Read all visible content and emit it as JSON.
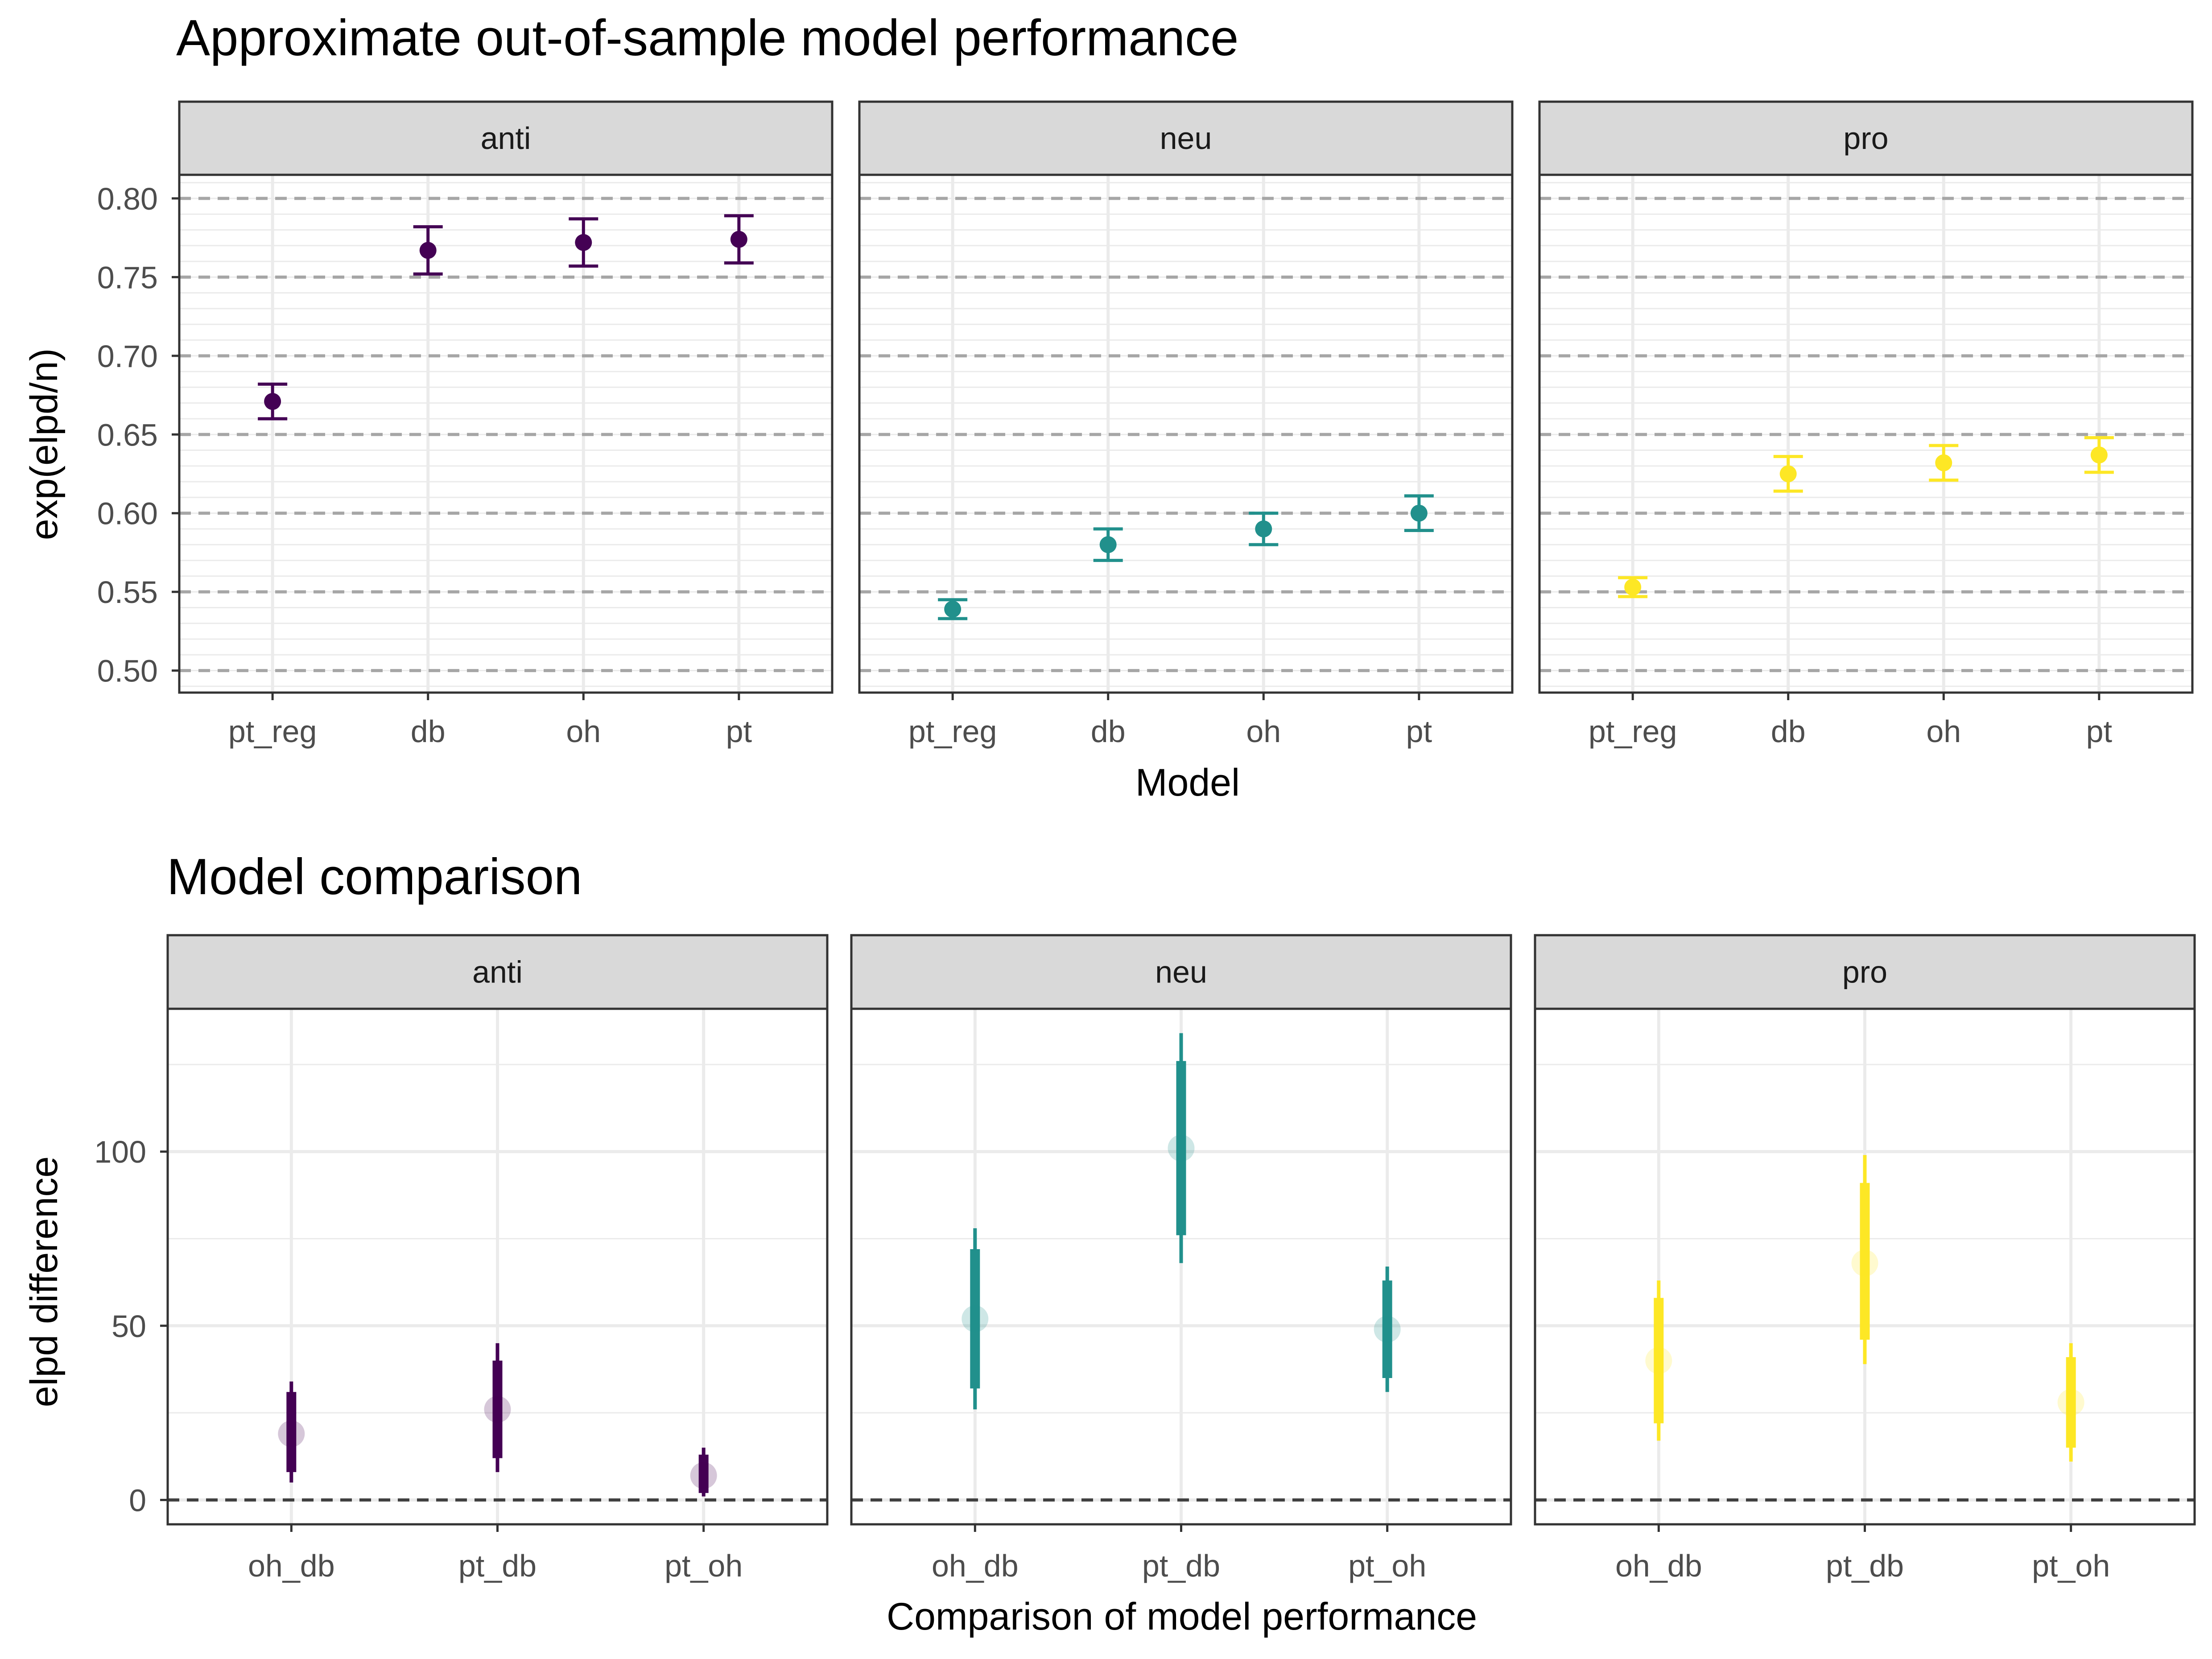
{
  "colors": {
    "anti": "#440154",
    "neu": "#21908C",
    "pro": "#FDE725",
    "strip_fill": "#D9D9D9",
    "panel_border": "#333333",
    "grid": "#EBEBEB",
    "ref_line_top": "#A6A6A6",
    "ref_line_bottom": "#404040"
  },
  "chart_data": [
    {
      "type": "scatter",
      "title": "Approximate out-of-sample model performance",
      "xlabel": "Model",
      "ylabel": "exp(elpd/n)",
      "ylim": [
        0.486,
        0.815
      ],
      "y_ticks": [
        "0.50",
        "0.55",
        "0.60",
        "0.65",
        "0.70",
        "0.75",
        "0.80"
      ],
      "y_tick_values": [
        0.5,
        0.55,
        0.6,
        0.65,
        0.7,
        0.75,
        0.8
      ],
      "dashed_reference_lines": [
        0.5,
        0.55,
        0.6,
        0.65,
        0.7,
        0.75,
        0.8
      ],
      "grid": true,
      "categories": [
        "pt_reg",
        "db",
        "oh",
        "pt"
      ],
      "facets": [
        {
          "label": "anti",
          "color_key": "anti",
          "points": [
            {
              "x": "pt_reg",
              "y": 0.671,
              "lower": 0.66,
              "upper": 0.682
            },
            {
              "x": "db",
              "y": 0.767,
              "lower": 0.752,
              "upper": 0.782
            },
            {
              "x": "oh",
              "y": 0.772,
              "lower": 0.757,
              "upper": 0.787
            },
            {
              "x": "pt",
              "y": 0.774,
              "lower": 0.759,
              "upper": 0.789
            }
          ]
        },
        {
          "label": "neu",
          "color_key": "neu",
          "points": [
            {
              "x": "pt_reg",
              "y": 0.539,
              "lower": 0.533,
              "upper": 0.545
            },
            {
              "x": "db",
              "y": 0.58,
              "lower": 0.57,
              "upper": 0.59
            },
            {
              "x": "oh",
              "y": 0.59,
              "lower": 0.58,
              "upper": 0.6
            },
            {
              "x": "pt",
              "y": 0.6,
              "lower": 0.589,
              "upper": 0.611
            }
          ]
        },
        {
          "label": "pro",
          "color_key": "pro",
          "points": [
            {
              "x": "pt_reg",
              "y": 0.553,
              "lower": 0.547,
              "upper": 0.559
            },
            {
              "x": "db",
              "y": 0.625,
              "lower": 0.614,
              "upper": 0.636
            },
            {
              "x": "oh",
              "y": 0.632,
              "lower": 0.621,
              "upper": 0.643
            },
            {
              "x": "pt",
              "y": 0.637,
              "lower": 0.626,
              "upper": 0.648
            }
          ]
        }
      ]
    },
    {
      "type": "scatter",
      "title": "Model comparison",
      "xlabel": "Comparison of model performance",
      "ylabel": "elpd difference",
      "ylim": [
        -7,
        141
      ],
      "y_ticks": [
        "0",
        "50",
        "100"
      ],
      "y_tick_values": [
        0,
        50,
        100
      ],
      "dashed_reference_lines": [
        0
      ],
      "grid": true,
      "categories": [
        "oh_db",
        "pt_db",
        "pt_oh"
      ],
      "facets": [
        {
          "label": "anti",
          "color_key": "anti",
          "intervals": [
            {
              "x": "oh_db",
              "point": 19,
              "inner": [
                8,
                31
              ],
              "outer": [
                5,
                34
              ]
            },
            {
              "x": "pt_db",
              "point": 26,
              "inner": [
                12,
                40
              ],
              "outer": [
                8,
                45
              ]
            },
            {
              "x": "pt_oh",
              "point": 7,
              "inner": [
                2,
                13
              ],
              "outer": [
                1,
                15
              ]
            }
          ]
        },
        {
          "label": "neu",
          "color_key": "neu",
          "intervals": [
            {
              "x": "oh_db",
              "point": 52,
              "inner": [
                32,
                72
              ],
              "outer": [
                26,
                78
              ]
            },
            {
              "x": "pt_db",
              "point": 101,
              "inner": [
                76,
                126
              ],
              "outer": [
                68,
                134
              ]
            },
            {
              "x": "pt_oh",
              "point": 49,
              "inner": [
                35,
                63
              ],
              "outer": [
                31,
                67
              ]
            }
          ]
        },
        {
          "label": "pro",
          "color_key": "pro",
          "intervals": [
            {
              "x": "oh_db",
              "point": 40,
              "inner": [
                22,
                58
              ],
              "outer": [
                17,
                63
              ]
            },
            {
              "x": "pt_db",
              "point": 68,
              "inner": [
                46,
                91
              ],
              "outer": [
                39,
                99
              ]
            },
            {
              "x": "pt_oh",
              "point": 28,
              "inner": [
                15,
                41
              ],
              "outer": [
                11,
                45
              ]
            }
          ]
        }
      ]
    }
  ]
}
